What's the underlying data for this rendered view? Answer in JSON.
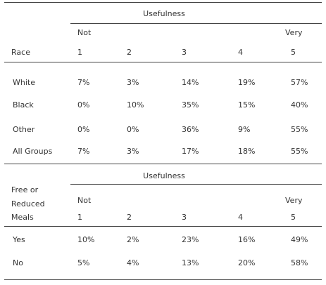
{
  "tables": [
    {
      "title": "Usefulness",
      "low": "Not",
      "high": "Very",
      "row_header": [
        "Race"
      ],
      "scale": [
        "1",
        "2",
        "3",
        "4",
        "5"
      ],
      "rows": [
        {
          "label": "White",
          "values": [
            "7%",
            "3%",
            "14%",
            "19%",
            "57%"
          ]
        },
        {
          "label": "Black",
          "values": [
            "0%",
            "10%",
            "35%",
            "15%",
            "40%"
          ]
        },
        {
          "label": "Other",
          "values": [
            "0%",
            "0%",
            "36%",
            "9%",
            "55%"
          ]
        },
        {
          "label": "All Groups",
          "values": [
            "7%",
            "3%",
            "17%",
            "18%",
            "55%"
          ]
        }
      ]
    },
    {
      "title": "Usefulness",
      "low": "Not",
      "high": "Very",
      "row_header": [
        "Free or",
        "Reduced",
        "Meals"
      ],
      "scale": [
        "1",
        "2",
        "3",
        "4",
        "5"
      ],
      "rows": [
        {
          "label": "Yes",
          "values": [
            "10%",
            "2%",
            "23%",
            "16%",
            "49%"
          ]
        },
        {
          "label": "No",
          "values": [
            "5%",
            "4%",
            "13%",
            "20%",
            "58%"
          ]
        }
      ]
    }
  ]
}
